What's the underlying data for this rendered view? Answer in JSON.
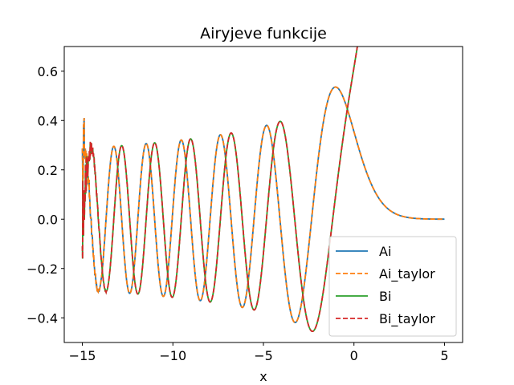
{
  "chart_data": {
    "type": "line",
    "title": "Airyjeve funkcije",
    "xlabel": "x",
    "ylabel": "",
    "xlim": [
      -16,
      6
    ],
    "ylim": [
      -0.5,
      0.7
    ],
    "xticks": [
      -15,
      -10,
      -5,
      0,
      5
    ],
    "xtick_labels": [
      "−15",
      "−10",
      "−5",
      "0",
      "5"
    ],
    "yticks": [
      -0.4,
      -0.2,
      0.0,
      0.2,
      0.4,
      0.6
    ],
    "ytick_labels": [
      "−0.4",
      "−0.2",
      "0.0",
      "0.2",
      "0.4",
      "0.6"
    ],
    "grid": false,
    "legend_position": "lower-right",
    "x_range": [
      -15,
      5
    ],
    "series": [
      {
        "name": "Ai",
        "color": "#1f77b4",
        "dash": "solid",
        "function": "Ai"
      },
      {
        "name": "Ai_taylor",
        "color": "#ff7f0e",
        "dash": "dashed",
        "function": "Ai"
      },
      {
        "name": "Bi",
        "color": "#2ca02c",
        "dash": "solid",
        "function": "Bi"
      },
      {
        "name": "Bi_taylor",
        "color": "#d62728",
        "dash": "dashed",
        "function": "Bi"
      }
    ]
  }
}
